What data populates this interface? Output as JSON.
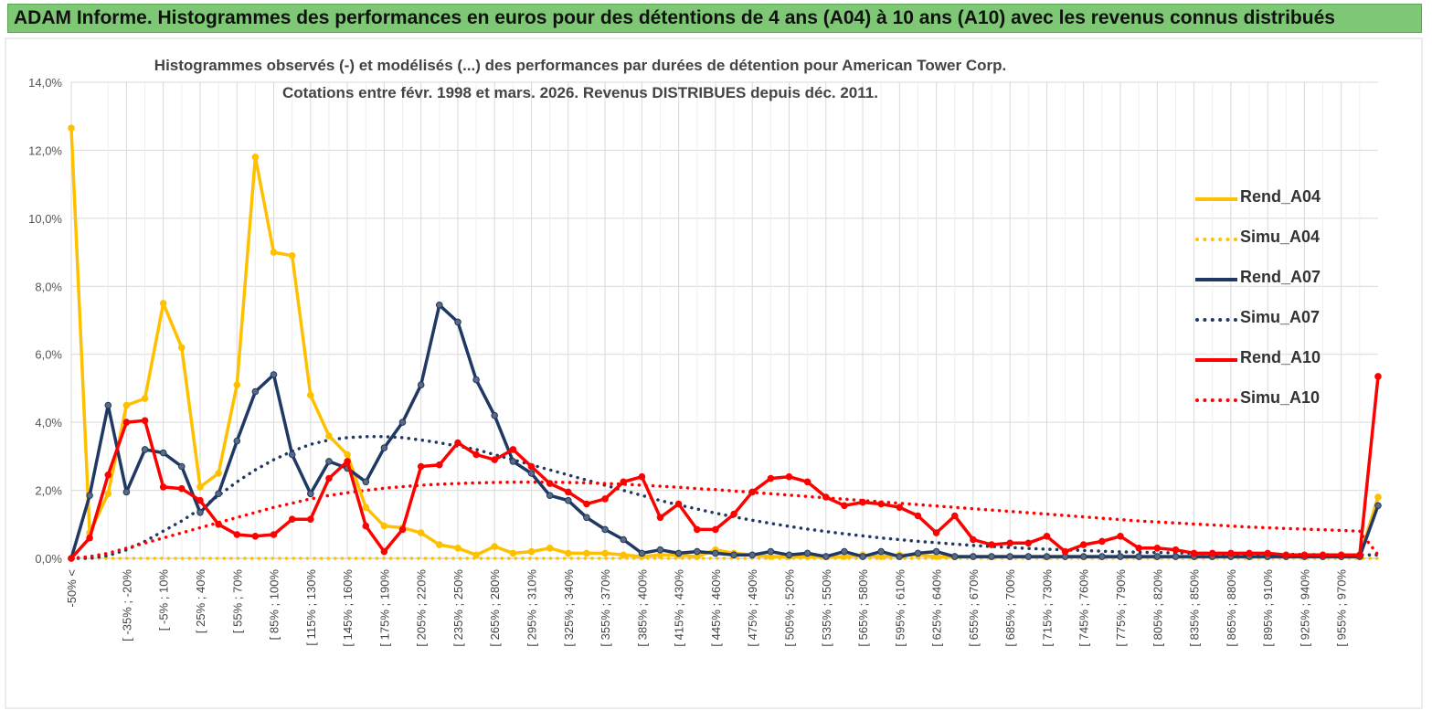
{
  "banner": {
    "text": "ADAM Informe. Histogrammes des performances en euros pour des détentions de 4 ans (A04) à 10 ans (A10) avec les revenus connus distribués"
  },
  "chart_data": {
    "type": "line",
    "title": "Histogrammes observés (-) et modélisés (...) des performances par durées de détention pour American Tower Corp.",
    "subtitle": "Cotations entre févr. 1998 et mars. 2026. Revenus DISTRIBUES depuis déc. 2011.",
    "xlabel": "",
    "ylabel": "",
    "ylim": [
      0,
      14
    ],
    "y_ticks": [
      "0,0%",
      "2,0%",
      "4,0%",
      "6,0%",
      "8,0%",
      "10,0%",
      "12,0%",
      "14,0%"
    ],
    "x_tick_labels": [
      "-50% <",
      "[ -35% ; -20%",
      "[ -5% ; 10%",
      "[ 25% ; 40%",
      "[ 55% ; 70%",
      "[ 85% ; 100%",
      "[ 115% ; 130%",
      "[ 145% ; 160%",
      "[ 175% ; 190%",
      "[ 205% ; 220%",
      "[ 235% ; 250%",
      "[ 265% ; 280%",
      "[ 295% ; 310%",
      "[ 325% ; 340%",
      "[ 355% ; 370%",
      "[ 385% ; 400%",
      "[ 415% ; 430%",
      "[ 445% ; 460%",
      "[ 475% ; 490%",
      "[ 505% ; 520%",
      "[ 535% ; 550%",
      "[ 565% ; 580%",
      "[ 595% ; 610%",
      "[ 625% ; 640%",
      "[ 655% ; 670%",
      "[ 685% ; 700%",
      "[ 715% ; 730%",
      "[ 745% ; 760%",
      "[ 775% ; 790%",
      "[ 805% ; 820%",
      "[ 835% ; 850%",
      "[ 865% ; 880%",
      "[ 895% ; 910%",
      "[ 925% ; 940%",
      "[ 955% ; 970%"
    ],
    "grid": true,
    "legend_position": "right",
    "series": [
      {
        "name": "Rend_A04",
        "color": "#ffc000",
        "style": "solid",
        "markers": true,
        "values": [
          12.65,
          0.75,
          1.9,
          4.5,
          4.7,
          7.5,
          6.2,
          2.1,
          2.5,
          5.1,
          11.8,
          9.0,
          8.9,
          4.8,
          3.6,
          3.05,
          1.5,
          0.95,
          0.9,
          0.75,
          0.4,
          0.3,
          0.1,
          0.35,
          0.15,
          0.2,
          0.3,
          0.15,
          0.15,
          0.15,
          0.1,
          0.05,
          0.1,
          0.1,
          0.05,
          0.25,
          0.15,
          0.1,
          0.05,
          0.05,
          0.05,
          0.05,
          0.05,
          0.1,
          0.05,
          0.1,
          0.1,
          0.05,
          0.05,
          0.05,
          0.05,
          0.05,
          0.05,
          0.05,
          0.05,
          0.05,
          0.05,
          0.05,
          0.05,
          0.05,
          0.05,
          0.05,
          0.05,
          0.05,
          0.05,
          0.05,
          0.05,
          0.05,
          0.05,
          0.05,
          0.05,
          1.8
        ]
      },
      {
        "name": "Simu_A04",
        "color": "#ffc000",
        "style": "dotted",
        "markers": false,
        "values": [
          0,
          0,
          0,
          0,
          0,
          0,
          0,
          0,
          0,
          0,
          0,
          0,
          0,
          0,
          0,
          0,
          0,
          0,
          0,
          0,
          0,
          0,
          0,
          0,
          0,
          0,
          0,
          0,
          0,
          0,
          0,
          0,
          0,
          0,
          0,
          0,
          0,
          0,
          0,
          0,
          0,
          0,
          0,
          0,
          0,
          0,
          0,
          0,
          0,
          0,
          0,
          0,
          0,
          0,
          0,
          0,
          0,
          0,
          0,
          0,
          0,
          0,
          0,
          0,
          0,
          0,
          0,
          0,
          0,
          0,
          0,
          0
        ]
      },
      {
        "name": "Rend_A07",
        "color": "#1f3864",
        "style": "solid",
        "markers": true,
        "values": [
          0,
          1.85,
          4.5,
          1.95,
          3.2,
          3.1,
          2.7,
          1.35,
          1.9,
          3.45,
          4.9,
          5.4,
          3.05,
          1.9,
          2.85,
          2.65,
          2.25,
          3.25,
          4.0,
          5.1,
          7.45,
          6.95,
          5.25,
          4.2,
          2.85,
          2.5,
          1.85,
          1.7,
          1.2,
          0.85,
          0.55,
          0.15,
          0.25,
          0.15,
          0.2,
          0.15,
          0.1,
          0.1,
          0.2,
          0.1,
          0.15,
          0.05,
          0.2,
          0.05,
          0.2,
          0.05,
          0.15,
          0.2,
          0.05,
          0.05,
          0.05,
          0.05,
          0.05,
          0.05,
          0.05,
          0.05,
          0.05,
          0.05,
          0.05,
          0.05,
          0.05,
          0.05,
          0.05,
          0.05,
          0.05,
          0.05,
          0.05,
          0.05,
          0.05,
          0.05,
          0.05,
          1.55
        ]
      },
      {
        "name": "Simu_A07",
        "color": "#1f3864",
        "style": "dotted",
        "markers": false,
        "values": [
          0,
          0,
          0.08,
          0.25,
          0.5,
          0.8,
          1.1,
          1.45,
          1.85,
          2.25,
          2.6,
          2.9,
          3.15,
          3.35,
          3.48,
          3.55,
          3.58,
          3.58,
          3.55,
          3.48,
          3.4,
          3.3,
          3.2,
          3.05,
          2.9,
          2.75,
          2.6,
          2.45,
          2.3,
          2.15,
          2.0,
          1.85,
          1.7,
          1.57,
          1.45,
          1.33,
          1.22,
          1.12,
          1.03,
          0.94,
          0.86,
          0.79,
          0.72,
          0.66,
          0.6,
          0.55,
          0.5,
          0.46,
          0.42,
          0.38,
          0.35,
          0.32,
          0.29,
          0.27,
          0.25,
          0.23,
          0.21,
          0.19,
          0.18,
          0.17,
          0.16,
          0.15,
          0.14,
          0.13,
          0.13,
          0.12,
          0.12,
          0.11,
          0.11,
          0.1,
          0.1,
          0.1
        ]
      },
      {
        "name": "Rend_A10",
        "color": "#ff0000",
        "style": "solid",
        "markers": true,
        "values": [
          0,
          0.6,
          2.45,
          4.0,
          4.05,
          2.1,
          2.05,
          1.7,
          1.0,
          0.7,
          0.65,
          0.7,
          1.15,
          1.15,
          2.35,
          2.85,
          0.95,
          0.2,
          0.85,
          2.7,
          2.75,
          3.4,
          3.05,
          2.9,
          3.2,
          2.7,
          2.2,
          1.95,
          1.6,
          1.75,
          2.25,
          2.4,
          1.2,
          1.6,
          0.85,
          0.85,
          1.3,
          1.95,
          2.35,
          2.4,
          2.25,
          1.8,
          1.55,
          1.65,
          1.6,
          1.5,
          1.25,
          0.75,
          1.25,
          0.55,
          0.4,
          0.45,
          0.45,
          0.65,
          0.2,
          0.4,
          0.5,
          0.65,
          0.3,
          0.3,
          0.25,
          0.15,
          0.15,
          0.15,
          0.15,
          0.15,
          0.1,
          0.1,
          0.1,
          0.1,
          0.1,
          5.35
        ]
      },
      {
        "name": "Simu_A10",
        "color": "#ff0000",
        "style": "dotted",
        "markers": false,
        "values": [
          0,
          0.05,
          0.15,
          0.3,
          0.45,
          0.6,
          0.75,
          0.9,
          1.05,
          1.2,
          1.35,
          1.5,
          1.62,
          1.75,
          1.85,
          1.93,
          2.0,
          2.06,
          2.11,
          2.15,
          2.18,
          2.2,
          2.22,
          2.23,
          2.24,
          2.24,
          2.24,
          2.23,
          2.22,
          2.2,
          2.18,
          2.15,
          2.12,
          2.09,
          2.05,
          2.02,
          1.98,
          1.94,
          1.9,
          1.86,
          1.82,
          1.78,
          1.74,
          1.7,
          1.66,
          1.62,
          1.58,
          1.54,
          1.5,
          1.46,
          1.42,
          1.38,
          1.34,
          1.3,
          1.26,
          1.22,
          1.18,
          1.14,
          1.1,
          1.07,
          1.04,
          1.01,
          0.98,
          0.95,
          0.92,
          0.9,
          0.88,
          0.86,
          0.84,
          0.82,
          0.8,
          0.1
        ]
      }
    ]
  }
}
